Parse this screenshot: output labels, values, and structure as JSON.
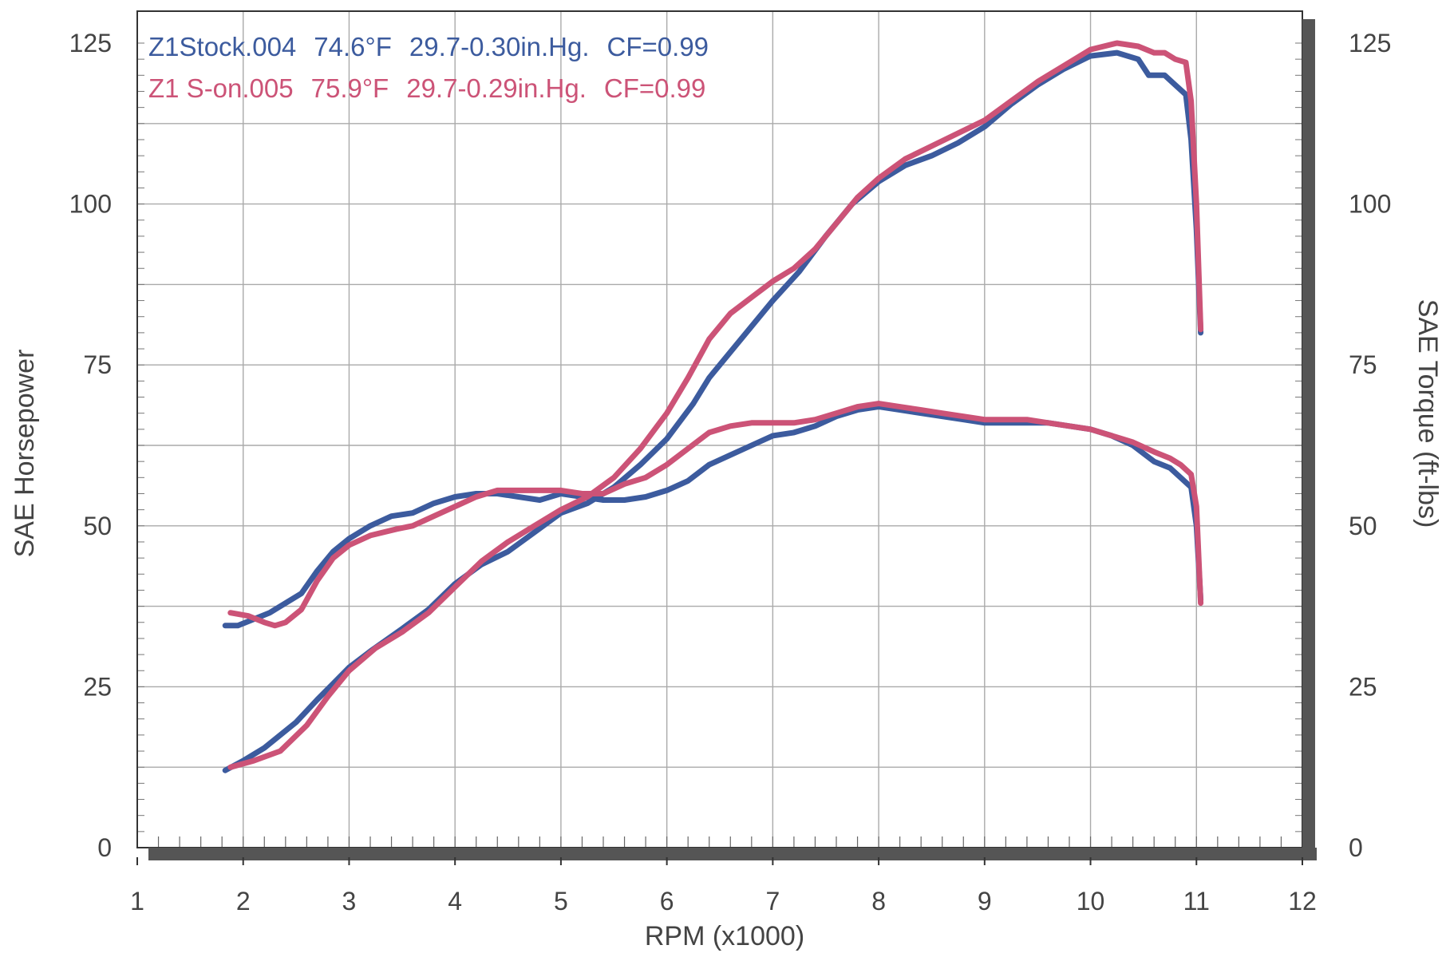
{
  "chart_data": {
    "type": "line",
    "xlabel": "RPM (x1000)",
    "ylabel_left": "SAE Horsepower",
    "ylabel_right": "SAE Torque (ft-lbs)",
    "xlim": [
      1,
      12
    ],
    "ylim": [
      0,
      125
    ],
    "y2lim": [
      0,
      125
    ],
    "x_ticks": [
      "1",
      "2",
      "3",
      "4",
      "5",
      "6",
      "7",
      "8",
      "9",
      "10",
      "11",
      "12"
    ],
    "y_ticks": [
      "0",
      "25",
      "50",
      "75",
      "100",
      "125"
    ],
    "y2_ticks": [
      "0",
      "25",
      "50",
      "75",
      "100",
      "125"
    ],
    "grid": true,
    "legend_position": "top-left",
    "colors": {
      "stock": "#3c5b9e",
      "s_on": "#cc5377",
      "frame": "#555555",
      "grid": "#aaaaaa",
      "text": "#444444"
    },
    "legend": [
      {
        "name": "Z1Stock.004",
        "temp": "74.6°F",
        "pressure": "29.7-0.30in.Hg.",
        "cf": "CF=0.99",
        "color": "#3c5b9e"
      },
      {
        "name": "Z1 S-on.005",
        "temp": "75.9°F",
        "pressure": "29.7-0.29in.Hg.",
        "cf": "CF=0.99",
        "color": "#cc5377"
      }
    ],
    "series": [
      {
        "name": "Z1Stock.004",
        "measure": "horsepower",
        "color": "#3c5b9e",
        "points": [
          [
            1.83,
            12
          ],
          [
            2.0,
            13.5
          ],
          [
            2.2,
            15.5
          ],
          [
            2.5,
            19.5
          ],
          [
            2.7,
            23
          ],
          [
            2.85,
            25.5
          ],
          [
            3.0,
            28
          ],
          [
            3.2,
            30.5
          ],
          [
            3.5,
            34
          ],
          [
            3.75,
            37
          ],
          [
            4.0,
            41
          ],
          [
            4.25,
            44
          ],
          [
            4.5,
            46
          ],
          [
            4.75,
            49
          ],
          [
            5.0,
            52
          ],
          [
            5.25,
            53.5
          ],
          [
            5.5,
            56
          ],
          [
            5.75,
            59.5
          ],
          [
            6.0,
            63.5
          ],
          [
            6.25,
            69
          ],
          [
            6.4,
            73
          ],
          [
            6.55,
            76
          ],
          [
            6.75,
            80
          ],
          [
            7.0,
            85
          ],
          [
            7.25,
            89.5
          ],
          [
            7.5,
            95
          ],
          [
            7.75,
            100
          ],
          [
            8.0,
            103.5
          ],
          [
            8.25,
            106
          ],
          [
            8.5,
            107.5
          ],
          [
            8.75,
            109.5
          ],
          [
            9.0,
            112
          ],
          [
            9.25,
            115.5
          ],
          [
            9.5,
            118.5
          ],
          [
            9.75,
            121
          ],
          [
            10.0,
            123
          ],
          [
            10.25,
            123.5
          ],
          [
            10.45,
            122.5
          ],
          [
            10.55,
            120
          ],
          [
            10.7,
            120
          ],
          [
            10.8,
            118.5
          ],
          [
            10.9,
            117
          ],
          [
            10.95,
            110
          ],
          [
            11.0,
            96
          ],
          [
            11.04,
            80
          ]
        ]
      },
      {
        "name": "Z1Stock.004",
        "measure": "torque",
        "color": "#3c5b9e",
        "points": [
          [
            1.83,
            34.5
          ],
          [
            1.95,
            34.5
          ],
          [
            2.1,
            35.5
          ],
          [
            2.25,
            36.5
          ],
          [
            2.4,
            38
          ],
          [
            2.55,
            39.5
          ],
          [
            2.7,
            43
          ],
          [
            2.85,
            46
          ],
          [
            3.0,
            48
          ],
          [
            3.2,
            50
          ],
          [
            3.4,
            51.5
          ],
          [
            3.6,
            52
          ],
          [
            3.8,
            53.5
          ],
          [
            4.0,
            54.5
          ],
          [
            4.2,
            55
          ],
          [
            4.4,
            55
          ],
          [
            4.6,
            54.5
          ],
          [
            4.8,
            54
          ],
          [
            5.0,
            55
          ],
          [
            5.2,
            54.5
          ],
          [
            5.4,
            54
          ],
          [
            5.6,
            54
          ],
          [
            5.8,
            54.5
          ],
          [
            6.0,
            55.5
          ],
          [
            6.2,
            57
          ],
          [
            6.4,
            59.5
          ],
          [
            6.6,
            61
          ],
          [
            6.8,
            62.5
          ],
          [
            7.0,
            64
          ],
          [
            7.2,
            64.5
          ],
          [
            7.4,
            65.5
          ],
          [
            7.6,
            67
          ],
          [
            7.8,
            68
          ],
          [
            8.0,
            68.5
          ],
          [
            8.2,
            68
          ],
          [
            8.4,
            67.5
          ],
          [
            8.6,
            67
          ],
          [
            8.8,
            66.5
          ],
          [
            9.0,
            66
          ],
          [
            9.2,
            66
          ],
          [
            9.4,
            66
          ],
          [
            9.6,
            66
          ],
          [
            9.8,
            65.5
          ],
          [
            10.0,
            65
          ],
          [
            10.2,
            64
          ],
          [
            10.4,
            62.5
          ],
          [
            10.6,
            60
          ],
          [
            10.75,
            59
          ],
          [
            10.85,
            57.5
          ],
          [
            10.95,
            56
          ],
          [
            11.0,
            50
          ],
          [
            11.04,
            38.5
          ]
        ]
      },
      {
        "name": "Z1 S-on.005",
        "measure": "horsepower",
        "color": "#cc5377",
        "points": [
          [
            1.88,
            12.5
          ],
          [
            2.1,
            13.5
          ],
          [
            2.35,
            15
          ],
          [
            2.6,
            19
          ],
          [
            2.8,
            23.5
          ],
          [
            3.0,
            27.5
          ],
          [
            3.25,
            31
          ],
          [
            3.5,
            33.5
          ],
          [
            3.75,
            36.5
          ],
          [
            4.0,
            40.5
          ],
          [
            4.25,
            44.5
          ],
          [
            4.5,
            47.5
          ],
          [
            4.75,
            50
          ],
          [
            5.0,
            52.5
          ],
          [
            5.25,
            54.5
          ],
          [
            5.5,
            57.5
          ],
          [
            5.75,
            62
          ],
          [
            6.0,
            67.5
          ],
          [
            6.2,
            73
          ],
          [
            6.4,
            79
          ],
          [
            6.6,
            83
          ],
          [
            6.8,
            85.5
          ],
          [
            7.0,
            88
          ],
          [
            7.2,
            90
          ],
          [
            7.4,
            93
          ],
          [
            7.6,
            97
          ],
          [
            7.8,
            101
          ],
          [
            8.0,
            104
          ],
          [
            8.25,
            107
          ],
          [
            8.5,
            109
          ],
          [
            8.75,
            111
          ],
          [
            9.0,
            113
          ],
          [
            9.25,
            116
          ],
          [
            9.5,
            119
          ],
          [
            9.75,
            121.5
          ],
          [
            10.0,
            124
          ],
          [
            10.25,
            125
          ],
          [
            10.45,
            124.5
          ],
          [
            10.6,
            123.5
          ],
          [
            10.7,
            123.5
          ],
          [
            10.8,
            122.5
          ],
          [
            10.9,
            122
          ],
          [
            10.95,
            116
          ],
          [
            11.0,
            100
          ],
          [
            11.04,
            80.5
          ]
        ]
      },
      {
        "name": "Z1 S-on.005",
        "measure": "torque",
        "color": "#cc5377",
        "points": [
          [
            1.88,
            36.5
          ],
          [
            2.05,
            36
          ],
          [
            2.2,
            35
          ],
          [
            2.3,
            34.5
          ],
          [
            2.4,
            35
          ],
          [
            2.55,
            37
          ],
          [
            2.7,
            41.5
          ],
          [
            2.85,
            45
          ],
          [
            3.0,
            47
          ],
          [
            3.2,
            48.5
          ],
          [
            3.45,
            49.5
          ],
          [
            3.6,
            50
          ],
          [
            3.8,
            51.5
          ],
          [
            4.0,
            53
          ],
          [
            4.2,
            54.5
          ],
          [
            4.4,
            55.5
          ],
          [
            4.6,
            55.5
          ],
          [
            4.8,
            55.5
          ],
          [
            5.0,
            55.5
          ],
          [
            5.2,
            55
          ],
          [
            5.4,
            55
          ],
          [
            5.6,
            56.5
          ],
          [
            5.8,
            57.5
          ],
          [
            6.0,
            59.5
          ],
          [
            6.2,
            62
          ],
          [
            6.4,
            64.5
          ],
          [
            6.6,
            65.5
          ],
          [
            6.8,
            66
          ],
          [
            7.0,
            66
          ],
          [
            7.2,
            66
          ],
          [
            7.4,
            66.5
          ],
          [
            7.6,
            67.5
          ],
          [
            7.8,
            68.5
          ],
          [
            8.0,
            69
          ],
          [
            8.2,
            68.5
          ],
          [
            8.4,
            68
          ],
          [
            8.6,
            67.5
          ],
          [
            8.8,
            67
          ],
          [
            9.0,
            66.5
          ],
          [
            9.2,
            66.5
          ],
          [
            9.4,
            66.5
          ],
          [
            9.6,
            66
          ],
          [
            9.8,
            65.5
          ],
          [
            10.0,
            65
          ],
          [
            10.2,
            64
          ],
          [
            10.4,
            63
          ],
          [
            10.6,
            61.5
          ],
          [
            10.75,
            60.5
          ],
          [
            10.85,
            59.5
          ],
          [
            10.95,
            58
          ],
          [
            11.0,
            53
          ],
          [
            11.04,
            38
          ]
        ]
      }
    ]
  }
}
